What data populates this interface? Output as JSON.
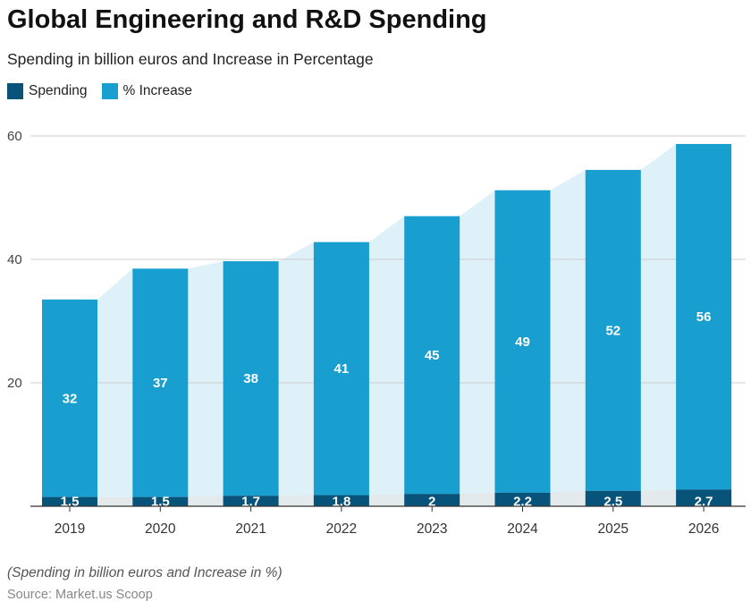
{
  "title": "Global Engineering and R&D Spending",
  "subtitle": "Spending in billion euros and Increase in Percentage",
  "footnote": "(Spending in billion euros and Increase in %)",
  "source": "Source: Market.us Scoop",
  "colors": {
    "spending": "#08537a",
    "increase": "#199fcf",
    "area": "#dff1f8",
    "area_bottom": "#e4e9ec",
    "grid": "#cccccc"
  },
  "chart_data": {
    "type": "bar",
    "stacked": true,
    "categories": [
      "2019",
      "2020",
      "2021",
      "2022",
      "2023",
      "2024",
      "2025",
      "2026"
    ],
    "series": [
      {
        "name": "Spending",
        "values": [
          1.5,
          1.5,
          1.7,
          1.8,
          2,
          2.2,
          2.5,
          2.7
        ],
        "labels": [
          "1.5",
          "1.5",
          "1.7",
          "1.8",
          "2",
          "2.2",
          "2.5",
          "2.7"
        ]
      },
      {
        "name": "% Increase",
        "values": [
          32,
          37,
          38,
          41,
          45,
          49,
          52,
          56
        ],
        "labels": [
          "32",
          "37",
          "38",
          "41",
          "45",
          "49",
          "52",
          "56"
        ]
      }
    ],
    "y_ticks": [
      "20",
      "40",
      "60"
    ],
    "ylim": [
      0,
      60
    ],
    "grid": true,
    "legend_position": "top-left"
  }
}
